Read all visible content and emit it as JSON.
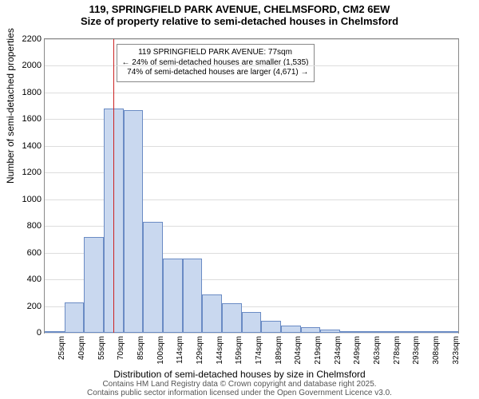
{
  "titles": {
    "line1": "119, SPRINGFIELD PARK AVENUE, CHELMSFORD, CM2 6EW",
    "line2": "Size of property relative to semi-detached houses in Chelmsford"
  },
  "ylabel": "Number of semi-detached properties",
  "xlabel": "Distribution of semi-detached houses by size in Chelmsford",
  "footer": {
    "line1": "Contains HM Land Registry data © Crown copyright and database right 2025.",
    "line2": "Contains public sector information licensed under the Open Government Licence v3.0."
  },
  "chart": {
    "type": "histogram",
    "background_color": "#ffffff",
    "grid_color": "#dddddd",
    "bar_fill": "#c9d8ef",
    "bar_border": "#6a8bc4",
    "ref_line_color": "#cc2222",
    "ref_value_sqm": 77,
    "y": {
      "min": 0,
      "max": 2200,
      "step": 200
    },
    "x_min": 25,
    "x_step": 15,
    "categories": [
      "25sqm",
      "40sqm",
      "55sqm",
      "70sqm",
      "85sqm",
      "100sqm",
      "114sqm",
      "129sqm",
      "144sqm",
      "159sqm",
      "174sqm",
      "189sqm",
      "204sqm",
      "219sqm",
      "234sqm",
      "249sqm",
      "263sqm",
      "278sqm",
      "293sqm",
      "308sqm",
      "323sqm"
    ],
    "values": [
      10,
      230,
      720,
      1680,
      1670,
      830,
      555,
      555,
      290,
      220,
      155,
      90,
      55,
      40,
      25,
      10,
      10,
      15,
      5,
      5,
      0
    ]
  },
  "annotation": {
    "line1": "119 SPRINGFIELD PARK AVENUE: 77sqm",
    "line2": "← 24% of semi-detached houses are smaller (1,535)",
    "line3": "74% of semi-detached houses are larger (4,671) →"
  }
}
